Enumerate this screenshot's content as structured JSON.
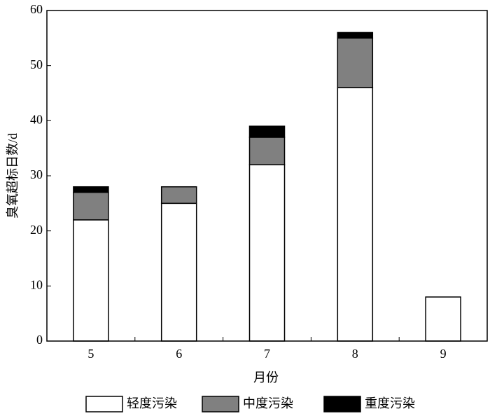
{
  "chart_data": {
    "type": "bar",
    "stacked": true,
    "x_label": "月份",
    "y_label": "臭氧超标日数/d",
    "categories": [
      "5",
      "6",
      "7",
      "8",
      "9"
    ],
    "series": [
      {
        "name": "轻度污染",
        "color": "#ffffff",
        "values": [
          22,
          25,
          32,
          46,
          8
        ]
      },
      {
        "name": "中度污染",
        "color": "#808080",
        "values": [
          5,
          3,
          5,
          9,
          0
        ]
      },
      {
        "name": "重度污染",
        "color": "#000000",
        "values": [
          1,
          0,
          2,
          1,
          0
        ]
      }
    ],
    "ylim": [
      0,
      60
    ],
    "yticks": [
      0,
      10,
      20,
      30,
      40,
      50,
      60
    ],
    "grid": false,
    "legend": "bottom"
  }
}
